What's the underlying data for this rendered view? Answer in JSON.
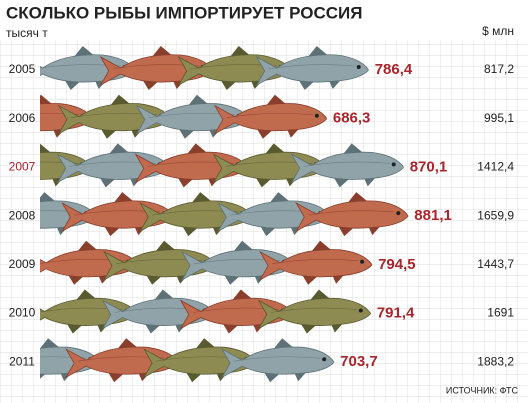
{
  "chart_data": {
    "type": "bar",
    "title": "СКОЛЬКО РЫБЫ ИМПОРТИРУЕТ РОССИЯ",
    "y_label": "тысяч т",
    "usd_label": "$ млн",
    "source": "ИСТОЧНИК: ФТС",
    "categories": [
      "2005",
      "2006",
      "2007",
      "2008",
      "2009",
      "2010",
      "2011"
    ],
    "category_colors": [
      "#222",
      "#222",
      "#a8252c",
      "#222",
      "#222",
      "#222",
      "#222"
    ],
    "series": [
      {
        "name": "тысяч т",
        "color": "#a8252c",
        "values": [
          786.4,
          686.3,
          870.1,
          881.1,
          794.5,
          791.4,
          703.7
        ],
        "value_labels": [
          "786,4",
          "686,3",
          "870,1",
          "881,1",
          "794,5",
          "791,4",
          "703,7"
        ]
      },
      {
        "name": "$ млн",
        "color": "#222",
        "values": [
          817.2,
          995.1,
          1412.4,
          1659.9,
          1443.7,
          1691,
          1883.2
        ],
        "value_labels": [
          "817,2",
          "995,1",
          "1412,4",
          "1659,9",
          "1443,7",
          "1691",
          "1883,2"
        ]
      }
    ]
  }
}
